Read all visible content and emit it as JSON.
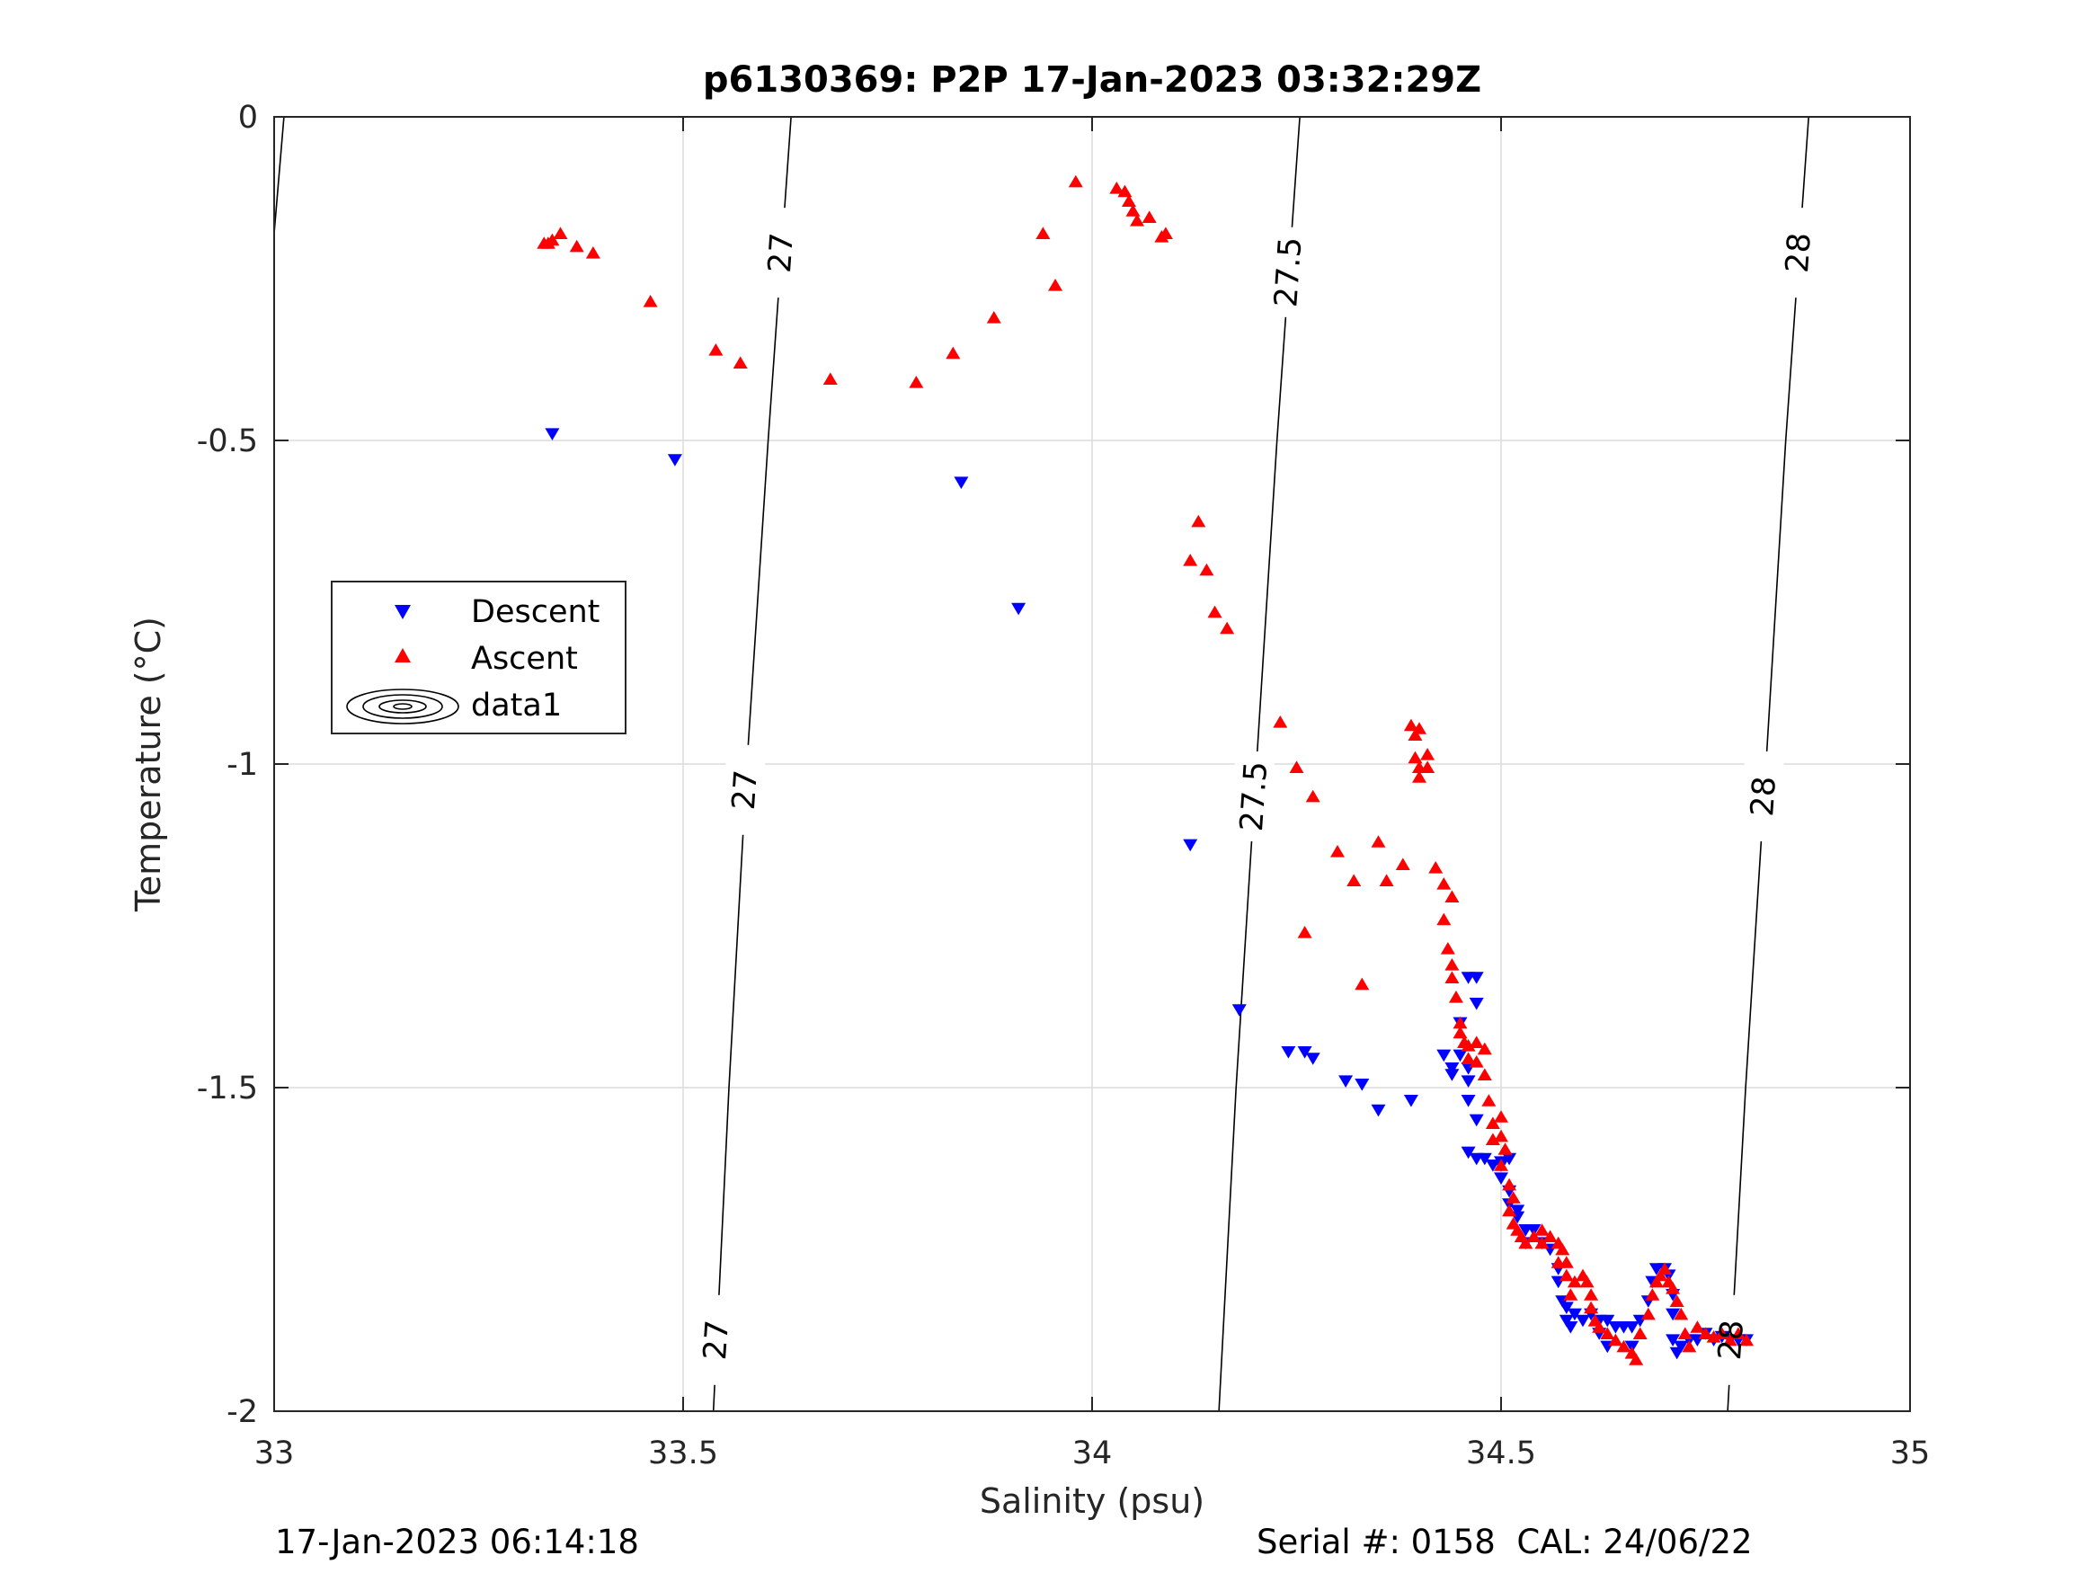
{
  "chart_data": {
    "type": "scatter",
    "title": "p6130369: P2P 17-Jan-2023 03:32:29Z",
    "xlabel": "Salinity (psu)",
    "ylabel": "Temperature (°C)",
    "xlim": [
      33,
      35
    ],
    "ylim": [
      -2,
      0
    ],
    "x_ticks": [
      33,
      33.5,
      34,
      34.5,
      35
    ],
    "x_tick_labels": [
      "33",
      "33.5",
      "34",
      "34.5",
      "35"
    ],
    "y_ticks": [
      0,
      -0.5,
      -1,
      -1.5,
      -2
    ],
    "y_tick_labels": [
      "0",
      "-0.5",
      "-1",
      "-1.5",
      "-2"
    ],
    "grid": true,
    "legend_position": "left",
    "legend": [
      "Descent",
      "Ascent",
      "data1"
    ],
    "colors": {
      "descent": "#0000ff",
      "ascent": "#ff0000",
      "contour": "#000000",
      "grid": "#dcdcdc",
      "axis": "#262626"
    },
    "series": [
      {
        "name": "Descent",
        "marker": "triangle-down",
        "color": "#0000ff",
        "points": [
          [
            33.34,
            -0.49
          ],
          [
            33.49,
            -0.53
          ],
          [
            33.84,
            -0.565
          ],
          [
            33.91,
            -0.76
          ],
          [
            34.12,
            -1.125
          ],
          [
            34.18,
            -1.38
          ],
          [
            34.24,
            -1.445
          ],
          [
            34.26,
            -1.445
          ],
          [
            34.27,
            -1.455
          ],
          [
            34.31,
            -1.49
          ],
          [
            34.33,
            -1.495
          ],
          [
            34.35,
            -1.535
          ],
          [
            34.39,
            -1.52
          ],
          [
            34.43,
            -1.45
          ],
          [
            34.44,
            -1.47
          ],
          [
            34.44,
            -1.48
          ],
          [
            34.45,
            -1.4
          ],
          [
            34.45,
            -1.45
          ],
          [
            34.46,
            -1.33
          ],
          [
            34.46,
            -1.47
          ],
          [
            34.46,
            -1.49
          ],
          [
            34.46,
            -1.52
          ],
          [
            34.47,
            -1.33
          ],
          [
            34.47,
            -1.37
          ],
          [
            34.46,
            -1.6
          ],
          [
            34.47,
            -1.55
          ],
          [
            34.47,
            -1.61
          ],
          [
            34.48,
            -1.61
          ],
          [
            34.49,
            -1.62
          ],
          [
            34.5,
            -1.615
          ],
          [
            34.5,
            -1.62
          ],
          [
            34.5,
            -1.64
          ],
          [
            34.51,
            -1.61
          ],
          [
            34.51,
            -1.66
          ],
          [
            34.51,
            -1.68
          ],
          [
            34.52,
            -1.69
          ],
          [
            34.52,
            -1.7
          ],
          [
            34.53,
            -1.72
          ],
          [
            34.54,
            -1.72
          ],
          [
            34.53,
            -1.74
          ],
          [
            34.55,
            -1.74
          ],
          [
            34.56,
            -1.75
          ],
          [
            34.57,
            -1.78
          ],
          [
            34.57,
            -1.8
          ],
          [
            34.575,
            -1.83
          ],
          [
            34.58,
            -1.84
          ],
          [
            34.58,
            -1.86
          ],
          [
            34.585,
            -1.87
          ],
          [
            34.59,
            -1.85
          ],
          [
            34.6,
            -1.86
          ],
          [
            34.61,
            -1.85
          ],
          [
            34.62,
            -1.86
          ],
          [
            34.62,
            -1.88
          ],
          [
            34.63,
            -1.86
          ],
          [
            34.63,
            -1.9
          ],
          [
            34.64,
            -1.87
          ],
          [
            34.65,
            -1.87
          ],
          [
            34.66,
            -1.87
          ],
          [
            34.66,
            -1.9
          ],
          [
            34.67,
            -1.86
          ],
          [
            34.68,
            -1.83
          ],
          [
            34.685,
            -1.8
          ],
          [
            34.69,
            -1.78
          ],
          [
            34.7,
            -1.78
          ],
          [
            34.705,
            -1.79
          ],
          [
            34.71,
            -1.82
          ],
          [
            34.71,
            -1.85
          ],
          [
            34.71,
            -1.89
          ],
          [
            34.715,
            -1.91
          ],
          [
            34.72,
            -1.9
          ],
          [
            34.73,
            -1.89
          ],
          [
            34.74,
            -1.89
          ],
          [
            34.75,
            -1.88
          ],
          [
            34.76,
            -1.89
          ],
          [
            34.77,
            -1.885
          ],
          [
            34.78,
            -1.89
          ],
          [
            34.79,
            -1.89
          ],
          [
            34.8,
            -1.89
          ]
        ]
      },
      {
        "name": "Ascent",
        "marker": "triangle-up",
        "color": "#ff0000",
        "points": [
          [
            33.33,
            -0.195
          ],
          [
            33.335,
            -0.195
          ],
          [
            33.34,
            -0.19
          ],
          [
            33.35,
            -0.18
          ],
          [
            33.37,
            -0.2
          ],
          [
            33.39,
            -0.21
          ],
          [
            33.46,
            -0.285
          ],
          [
            33.54,
            -0.36
          ],
          [
            33.57,
            -0.38
          ],
          [
            33.68,
            -0.405
          ],
          [
            33.785,
            -0.41
          ],
          [
            33.83,
            -0.365
          ],
          [
            33.88,
            -0.31
          ],
          [
            33.94,
            -0.18
          ],
          [
            33.955,
            -0.26
          ],
          [
            33.98,
            -0.1
          ],
          [
            34.03,
            -0.11
          ],
          [
            34.04,
            -0.115
          ],
          [
            34.045,
            -0.13
          ],
          [
            34.05,
            -0.145
          ],
          [
            34.055,
            -0.16
          ],
          [
            34.07,
            -0.155
          ],
          [
            34.085,
            -0.185
          ],
          [
            34.09,
            -0.18
          ],
          [
            34.13,
            -0.625
          ],
          [
            34.12,
            -0.685
          ],
          [
            34.14,
            -0.7
          ],
          [
            34.15,
            -0.765
          ],
          [
            34.165,
            -0.79
          ],
          [
            34.23,
            -0.935
          ],
          [
            34.25,
            -1.005
          ],
          [
            34.27,
            -1.05
          ],
          [
            34.26,
            -1.26
          ],
          [
            34.3,
            -1.135
          ],
          [
            34.32,
            -1.18
          ],
          [
            34.33,
            -1.34
          ],
          [
            34.35,
            -1.12
          ],
          [
            34.36,
            -1.18
          ],
          [
            34.38,
            -1.155
          ],
          [
            34.39,
            -0.94
          ],
          [
            34.395,
            -0.955
          ],
          [
            34.395,
            -0.99
          ],
          [
            34.4,
            -1.005
          ],
          [
            34.4,
            -1.02
          ],
          [
            34.4,
            -0.945
          ],
          [
            34.41,
            -0.985
          ],
          [
            34.41,
            -1.005
          ],
          [
            34.42,
            -1.16
          ],
          [
            34.43,
            -1.185
          ],
          [
            34.44,
            -1.205
          ],
          [
            34.43,
            -1.24
          ],
          [
            34.435,
            -1.285
          ],
          [
            34.44,
            -1.31
          ],
          [
            34.44,
            -1.33
          ],
          [
            34.445,
            -1.36
          ],
          [
            34.45,
            -1.4
          ],
          [
            34.45,
            -1.415
          ],
          [
            34.455,
            -1.43
          ],
          [
            34.46,
            -1.435
          ],
          [
            34.46,
            -1.455
          ],
          [
            34.47,
            -1.43
          ],
          [
            34.47,
            -1.46
          ],
          [
            34.48,
            -1.44
          ],
          [
            34.48,
            -1.48
          ],
          [
            34.485,
            -1.52
          ],
          [
            34.49,
            -1.555
          ],
          [
            34.49,
            -1.58
          ],
          [
            34.5,
            -1.545
          ],
          [
            34.5,
            -1.575
          ],
          [
            34.505,
            -1.595
          ],
          [
            34.5,
            -1.62
          ],
          [
            34.51,
            -1.65
          ],
          [
            34.515,
            -1.67
          ],
          [
            34.51,
            -1.69
          ],
          [
            34.515,
            -1.71
          ],
          [
            34.52,
            -1.72
          ],
          [
            34.525,
            -1.73
          ],
          [
            34.53,
            -1.74
          ],
          [
            34.54,
            -1.73
          ],
          [
            34.55,
            -1.74
          ],
          [
            34.55,
            -1.72
          ],
          [
            34.56,
            -1.73
          ],
          [
            34.57,
            -1.74
          ],
          [
            34.575,
            -1.75
          ],
          [
            34.57,
            -1.77
          ],
          [
            34.58,
            -1.77
          ],
          [
            34.58,
            -1.79
          ],
          [
            34.585,
            -1.82
          ],
          [
            34.59,
            -1.8
          ],
          [
            34.6,
            -1.79
          ],
          [
            34.605,
            -1.8
          ],
          [
            34.61,
            -1.82
          ],
          [
            34.61,
            -1.84
          ],
          [
            34.615,
            -1.86
          ],
          [
            34.62,
            -1.87
          ],
          [
            34.63,
            -1.88
          ],
          [
            34.64,
            -1.89
          ],
          [
            34.65,
            -1.9
          ],
          [
            34.66,
            -1.91
          ],
          [
            34.665,
            -1.92
          ],
          [
            34.67,
            -1.88
          ],
          [
            34.68,
            -1.85
          ],
          [
            34.685,
            -1.82
          ],
          [
            34.69,
            -1.8
          ],
          [
            34.695,
            -1.79
          ],
          [
            34.7,
            -1.78
          ],
          [
            34.705,
            -1.8
          ],
          [
            34.71,
            -1.81
          ],
          [
            34.715,
            -1.83
          ],
          [
            34.72,
            -1.85
          ],
          [
            34.725,
            -1.88
          ],
          [
            34.73,
            -1.9
          ],
          [
            34.74,
            -1.87
          ],
          [
            34.75,
            -1.88
          ],
          [
            34.76,
            -1.885
          ],
          [
            34.77,
            -1.88
          ],
          [
            34.78,
            -1.89
          ],
          [
            34.79,
            -1.88
          ],
          [
            34.8,
            -1.89
          ]
        ]
      }
    ],
    "contours": [
      {
        "level": "27.5",
        "label": "27.5",
        "points": [
          [
            34.254,
            0
          ],
          [
            34.226,
            -0.5
          ],
          [
            34.201,
            -1
          ],
          [
            34.176,
            -1.5
          ],
          [
            34.155,
            -2
          ]
        ],
        "label_y": [
          -0.24,
          -1.05
        ]
      },
      {
        "level": "27",
        "label": "27",
        "points": [
          [
            33.632,
            0
          ],
          [
            33.604,
            -0.5
          ],
          [
            33.578,
            -1
          ],
          [
            33.556,
            -1.5
          ],
          [
            33.537,
            -2
          ]
        ],
        "label_y": [
          -0.21,
          -1.04,
          -1.89
        ]
      },
      {
        "level": "28",
        "label": "28",
        "points": [
          [
            34.876,
            0
          ],
          [
            34.848,
            -0.5
          ],
          [
            34.824,
            -1
          ],
          [
            34.799,
            -1.5
          ],
          [
            34.777,
            -2
          ]
        ],
        "label_y": [
          -0.21,
          -1.05,
          -1.89
        ]
      },
      {
        "level": "26.5",
        "label": "",
        "points": [
          [
            33.012,
            0
          ],
          [
            33.0,
            -0.18
          ]
        ],
        "label_y": []
      }
    ]
  },
  "footer": {
    "left": "17-Jan-2023 06:14:18",
    "right": "Serial #: 0158  CAL: 24/06/22"
  }
}
